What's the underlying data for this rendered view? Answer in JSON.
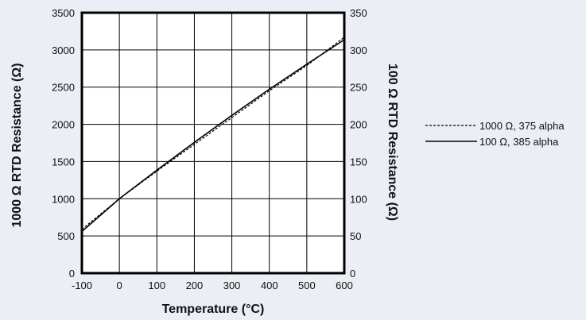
{
  "chart_data": {
    "type": "line",
    "xlabel": "Temperature (°C)",
    "ylabel_left": "1000 Ω RTD Resistance (Ω)",
    "ylabel_right": "100 Ω RTD Resistance (Ω)",
    "xlim": [
      -100,
      600
    ],
    "xticks": [
      -100,
      0,
      100,
      200,
      300,
      400,
      500,
      600
    ],
    "ylim_left": [
      0,
      3500
    ],
    "yticks_left": [
      0,
      500,
      1000,
      1500,
      2000,
      2500,
      3000,
      3500
    ],
    "ylim_right": [
      0,
      350
    ],
    "yticks_right": [
      0,
      50,
      100,
      150,
      200,
      250,
      300,
      350
    ],
    "grid": true,
    "legend_position": "right",
    "series": [
      {
        "name": "1000 Ω, 375 alpha",
        "axis": "left",
        "style": "dashed",
        "x": [
          -100,
          0,
          100,
          200,
          300,
          400,
          500,
          600
        ],
        "y": [
          590,
          1000,
          1370,
          1730,
          2090,
          2450,
          2790,
          3170
        ]
      },
      {
        "name": "100 Ω, 385 alpha",
        "axis": "right",
        "style": "solid",
        "x": [
          -100,
          0,
          100,
          200,
          300,
          400,
          500,
          600
        ],
        "y": [
          56,
          100,
          138.5,
          175.8,
          212.0,
          247.1,
          280.9,
          313.7
        ]
      }
    ]
  }
}
